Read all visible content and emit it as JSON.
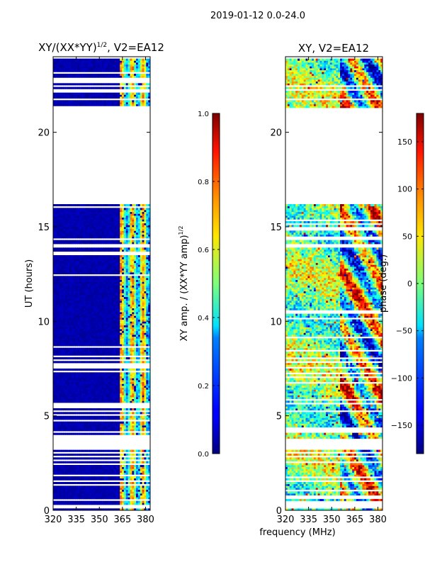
{
  "figure": {
    "suptitle": "2019-01-12 0.0-24.0",
    "shared_xlabel": "frequency (MHz)"
  },
  "chart_data": [
    {
      "type": "heatmap",
      "title_main": "XY/(XX*YY)",
      "title_sup": "1/2",
      "title_tail": ", V2=EA12",
      "ylabel": "UT (hours)",
      "xlim": [
        320,
        383
      ],
      "ylim": [
        0,
        24
      ],
      "xticks": [
        320,
        335,
        350,
        365,
        380
      ],
      "yticks": [
        0,
        5,
        10,
        15,
        20
      ],
      "colorbar": {
        "label": "XY amp. / (XX*YY amp)",
        "label_sup": "1/2",
        "range": [
          0.0,
          1.0
        ],
        "ticks": [
          0.0,
          0.2,
          0.4,
          0.6,
          0.8,
          1.0
        ],
        "tick_labels": [
          "0.0",
          "0.2",
          "0.4",
          "0.6",
          "0.8",
          "1.0"
        ]
      },
      "data_gaps_hours": [
        [
          21.3,
          16.2
        ],
        [
          14.1,
          13.9
        ],
        [
          3.75,
          3.15
        ]
      ]
    },
    {
      "type": "heatmap",
      "title": "XY, V2=EA12",
      "xlim": [
        320,
        383
      ],
      "ylim": [
        0,
        24
      ],
      "xticks": [
        320,
        335,
        350,
        365,
        380
      ],
      "yticks": [
        0,
        5,
        10,
        15,
        20
      ],
      "colorbar": {
        "label": "phase (deg.)",
        "range": [
          -180,
          180
        ],
        "ticks": [
          -150,
          -100,
          -50,
          0,
          50,
          100,
          150
        ],
        "tick_labels": [
          "−150",
          "−100",
          "−50",
          "0",
          "50",
          "100",
          "150"
        ]
      },
      "data_gaps_hours": [
        [
          21.3,
          16.2
        ],
        [
          14.1,
          13.9
        ],
        [
          3.75,
          3.15
        ]
      ]
    }
  ]
}
